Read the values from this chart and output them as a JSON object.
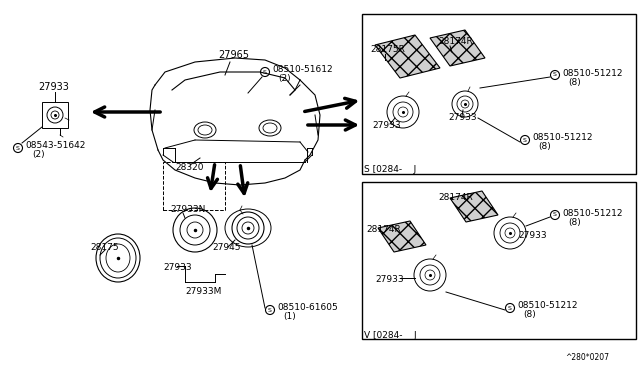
{
  "bg_color": "#ffffff",
  "line_color": "#000000",
  "text_color": "#000000",
  "fig_width": 6.4,
  "fig_height": 3.72,
  "dpi": 100,
  "watermark": "^280*0207",
  "right_box_top_label": "S [0284-    J",
  "right_box_bottom_label": "V [0284-    J"
}
